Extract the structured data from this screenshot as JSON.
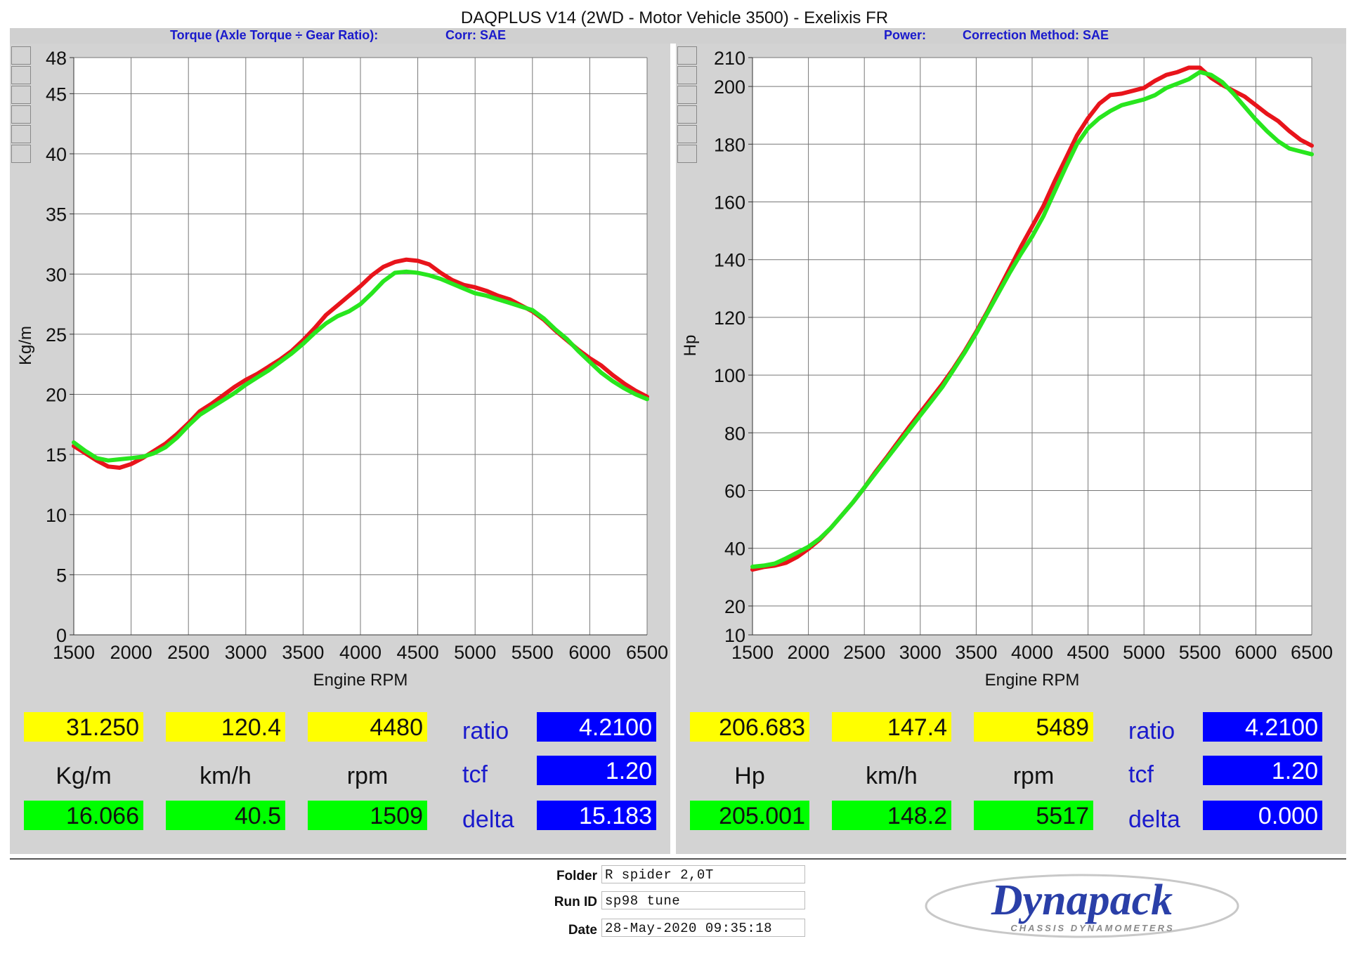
{
  "title": "DAQPLUS V14 (2WD - Motor Vehicle 3500) - Exelixis FR",
  "header": {
    "left_label": "Torque (Axle Torque ÷ Gear Ratio):",
    "left_corr": "Corr: SAE",
    "right_label": "Power:",
    "right_corr": "Correction Method: SAE"
  },
  "colors": {
    "run1": "#e8141b",
    "run2": "#28e61e",
    "swatches": [
      "#ff0000",
      "#00ff00",
      "#1e6fb4",
      "#ff00ff",
      "#00ffff",
      "#e87722"
    ],
    "accent_text": "#1a1acc"
  },
  "chart_data": [
    {
      "type": "line",
      "xlabel": "Engine RPM",
      "ylabel": "Kg/m",
      "xlim": [
        1500,
        6500
      ],
      "ylim": [
        0,
        48
      ],
      "xticks": [
        1500,
        2000,
        2500,
        3000,
        3500,
        4000,
        4500,
        5000,
        5500,
        6000,
        6500
      ],
      "yticks": [
        0,
        5,
        10,
        15,
        20,
        25,
        30,
        35,
        40,
        45,
        48
      ],
      "grid": true,
      "series": [
        {
          "color": "#e8141b",
          "x": [
            1500,
            1600,
            1700,
            1800,
            1900,
            2000,
            2100,
            2200,
            2300,
            2400,
            2500,
            2600,
            2700,
            2800,
            2900,
            3000,
            3100,
            3200,
            3300,
            3400,
            3500,
            3600,
            3700,
            3800,
            3900,
            4000,
            4100,
            4200,
            4300,
            4400,
            4500,
            4600,
            4700,
            4800,
            4900,
            5000,
            5100,
            5200,
            5300,
            5400,
            5500,
            5600,
            5700,
            5800,
            5900,
            6000,
            6100,
            6200,
            6300,
            6400,
            6500
          ],
          "values": [
            15.7,
            15.1,
            14.5,
            14.0,
            13.9,
            14.2,
            14.7,
            15.3,
            15.9,
            16.7,
            17.6,
            18.6,
            19.2,
            19.9,
            20.6,
            21.2,
            21.7,
            22.3,
            22.9,
            23.6,
            24.5,
            25.5,
            26.6,
            27.4,
            28.2,
            29.0,
            29.9,
            30.6,
            31.0,
            31.2,
            31.1,
            30.8,
            30.1,
            29.5,
            29.1,
            28.9,
            28.6,
            28.2,
            27.9,
            27.4,
            26.9,
            26.2,
            25.3,
            24.5,
            23.7,
            23.0,
            22.4,
            21.6,
            20.9,
            20.3,
            19.8
          ]
        },
        {
          "color": "#28e61e",
          "x": [
            1500,
            1600,
            1700,
            1800,
            1900,
            2000,
            2100,
            2200,
            2300,
            2400,
            2500,
            2600,
            2700,
            2800,
            2900,
            3000,
            3100,
            3200,
            3300,
            3400,
            3500,
            3600,
            3700,
            3800,
            3900,
            4000,
            4100,
            4200,
            4300,
            4400,
            4500,
            4600,
            4700,
            4800,
            4900,
            5000,
            5100,
            5200,
            5300,
            5400,
            5500,
            5600,
            5700,
            5800,
            5900,
            6000,
            6100,
            6200,
            6300,
            6400,
            6500
          ],
          "values": [
            16.0,
            15.3,
            14.7,
            14.5,
            14.6,
            14.7,
            14.8,
            15.1,
            15.6,
            16.4,
            17.4,
            18.3,
            18.9,
            19.5,
            20.1,
            20.8,
            21.4,
            22.0,
            22.7,
            23.4,
            24.2,
            25.1,
            25.9,
            26.5,
            26.9,
            27.5,
            28.4,
            29.4,
            30.1,
            30.2,
            30.1,
            29.9,
            29.6,
            29.2,
            28.8,
            28.4,
            28.2,
            27.9,
            27.6,
            27.3,
            27.0,
            26.3,
            25.4,
            24.6,
            23.6,
            22.7,
            21.8,
            21.1,
            20.5,
            20.0,
            19.6
          ]
        }
      ]
    },
    {
      "type": "line",
      "xlabel": "Engine RPM",
      "ylabel": "Hp",
      "xlim": [
        1500,
        6500
      ],
      "ylim": [
        10,
        210
      ],
      "xticks": [
        1500,
        2000,
        2500,
        3000,
        3500,
        4000,
        4500,
        5000,
        5500,
        6000,
        6500
      ],
      "yticks": [
        10,
        20,
        40,
        60,
        80,
        100,
        120,
        140,
        160,
        180,
        200,
        210
      ],
      "grid": true,
      "series": [
        {
          "color": "#e8141b",
          "x": [
            1500,
            1600,
            1700,
            1800,
            1900,
            2000,
            2100,
            2200,
            2300,
            2400,
            2500,
            2600,
            2700,
            2800,
            2900,
            3000,
            3100,
            3200,
            3300,
            3400,
            3500,
            3600,
            3700,
            3800,
            3900,
            4000,
            4100,
            4200,
            4300,
            4400,
            4500,
            4600,
            4700,
            4800,
            4900,
            5000,
            5100,
            5200,
            5300,
            5400,
            5500,
            5600,
            5700,
            5800,
            5900,
            6000,
            6100,
            6200,
            6300,
            6400,
            6500
          ],
          "values": [
            32.6,
            33.5,
            34.0,
            35.0,
            37.0,
            39.8,
            43.0,
            47.0,
            51.5,
            56.0,
            61.0,
            66.5,
            71.5,
            76.8,
            82.0,
            87.0,
            92.0,
            97.0,
            102.5,
            108.5,
            115.0,
            122.0,
            129.5,
            137.0,
            144.5,
            151.5,
            158.5,
            167.0,
            175.0,
            183.0,
            189.0,
            194.0,
            197.0,
            197.5,
            198.5,
            199.5,
            202.0,
            204.0,
            205.0,
            206.5,
            206.5,
            203.0,
            200.5,
            198.5,
            196.5,
            193.5,
            190.5,
            188.0,
            184.5,
            181.5,
            179.5
          ]
        },
        {
          "color": "#28e61e",
          "x": [
            1500,
            1600,
            1700,
            1800,
            1900,
            2000,
            2100,
            2200,
            2300,
            2400,
            2500,
            2600,
            2700,
            2800,
            2900,
            3000,
            3100,
            3200,
            3300,
            3400,
            3500,
            3600,
            3700,
            3800,
            3900,
            4000,
            4100,
            4200,
            4300,
            4400,
            4500,
            4600,
            4700,
            4800,
            4900,
            5000,
            5100,
            5200,
            5300,
            5400,
            5500,
            5600,
            5700,
            5800,
            5900,
            6000,
            6100,
            6200,
            6300,
            6400,
            6500
          ],
          "values": [
            33.6,
            34.0,
            34.7,
            36.5,
            38.5,
            40.5,
            43.3,
            47.0,
            51.5,
            56.0,
            61.0,
            66.0,
            71.0,
            76.0,
            81.0,
            86.0,
            91.0,
            96.0,
            102.0,
            108.0,
            114.5,
            121.5,
            128.5,
            135.5,
            142.0,
            148.0,
            155.0,
            163.5,
            172.0,
            180.0,
            185.5,
            189.0,
            191.5,
            193.5,
            194.5,
            195.5,
            197.0,
            199.5,
            201.0,
            202.5,
            205.0,
            204.0,
            201.5,
            197.5,
            193.0,
            188.5,
            184.5,
            181.0,
            178.5,
            177.5,
            176.5
          ]
        }
      ]
    }
  ],
  "readouts": {
    "left": {
      "yellow": [
        "31.250",
        "120.4",
        "4480"
      ],
      "units": [
        "Kg/m",
        "km/h",
        "rpm"
      ],
      "green": [
        "16.066",
        "40.5",
        "1509"
      ],
      "labels": [
        "ratio",
        "tcf",
        "delta"
      ],
      "blue": [
        "4.2100",
        "1.20",
        "15.183"
      ]
    },
    "right": {
      "yellow": [
        "206.683",
        "147.4",
        "5489"
      ],
      "units": [
        "Hp",
        "km/h",
        "rpm"
      ],
      "green": [
        "205.001",
        "148.2",
        "5517"
      ],
      "labels": [
        "ratio",
        "tcf",
        "delta"
      ],
      "blue": [
        "4.2100",
        "1.20",
        "0.000"
      ]
    }
  },
  "meta": {
    "folder_label": "Folder",
    "folder_value": "R spider 2,0T",
    "runid_label": "Run ID",
    "runid_value": "sp98 tune",
    "date_label": "Date",
    "date_value": "28-May-2020 09:35:18"
  },
  "logo": {
    "brand": "Dynapack",
    "tagline": "CHASSIS DYNAMOMETERS"
  }
}
